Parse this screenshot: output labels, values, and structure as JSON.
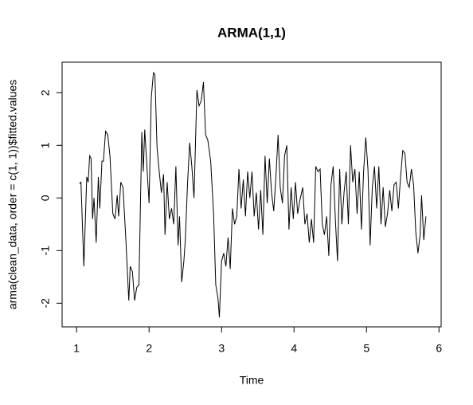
{
  "chart_data": {
    "type": "line",
    "title": "ARMA(1,1)",
    "x_label": "Time",
    "y_label": "arma(clean_data, order = c(1, 1))$fitted.values",
    "xlim": [
      0.8,
      6.03
    ],
    "ylim": [
      -2.45,
      2.58
    ],
    "xticks": [
      1,
      2,
      3,
      4,
      5,
      6
    ],
    "yticks": [
      -2,
      -1,
      0,
      1,
      2
    ],
    "color": "#000000",
    "x": [
      1.04,
      1.06,
      1.1,
      1.14,
      1.16,
      1.18,
      1.2,
      1.22,
      1.24,
      1.27,
      1.3,
      1.32,
      1.35,
      1.37,
      1.4,
      1.43,
      1.46,
      1.5,
      1.53,
      1.56,
      1.58,
      1.61,
      1.64,
      1.68,
      1.72,
      1.74,
      1.77,
      1.8,
      1.83,
      1.86,
      1.9,
      1.92,
      1.94,
      1.97,
      2.0,
      2.03,
      2.06,
      2.08,
      2.11,
      2.14,
      2.17,
      2.2,
      2.22,
      2.25,
      2.28,
      2.31,
      2.34,
      2.37,
      2.4,
      2.42,
      2.45,
      2.48,
      2.5,
      2.53,
      2.56,
      2.59,
      2.62,
      2.66,
      2.69,
      2.72,
      2.75,
      2.78,
      2.81,
      2.85,
      2.89,
      2.92,
      2.95,
      2.97,
      3.0,
      3.03,
      3.06,
      3.09,
      3.12,
      3.15,
      3.18,
      3.21,
      3.24,
      3.27,
      3.3,
      3.33,
      3.36,
      3.39,
      3.42,
      3.45,
      3.48,
      3.51,
      3.54,
      3.57,
      3.6,
      3.63,
      3.66,
      3.69,
      3.72,
      3.75,
      3.78,
      3.81,
      3.84,
      3.87,
      3.9,
      3.93,
      3.96,
      3.99,
      4.02,
      4.05,
      4.08,
      4.12,
      4.15,
      4.18,
      4.21,
      4.24,
      4.27,
      4.3,
      4.33,
      4.36,
      4.39,
      4.42,
      4.45,
      4.48,
      4.51,
      4.54,
      4.57,
      4.6,
      4.63,
      4.66,
      4.69,
      4.72,
      4.75,
      4.78,
      4.81,
      4.84,
      4.87,
      4.9,
      4.93,
      4.96,
      4.99,
      5.02,
      5.05,
      5.08,
      5.11,
      5.14,
      5.17,
      5.2,
      5.23,
      5.26,
      5.29,
      5.32,
      5.35,
      5.38,
      5.41,
      5.44,
      5.47,
      5.5,
      5.53,
      5.56,
      5.59,
      5.62,
      5.65,
      5.68,
      5.71,
      5.74,
      5.76,
      5.79,
      5.82
    ],
    "values": [
      0.27,
      0.3,
      -1.3,
      0.4,
      0.3,
      0.8,
      0.75,
      -0.4,
      0,
      -0.85,
      0.4,
      -0.2,
      0.7,
      0.7,
      1.27,
      1.2,
      0.8,
      -0.3,
      -0.4,
      0.05,
      -0.35,
      0.3,
      0.2,
      -0.8,
      -1.95,
      -1.3,
      -1.4,
      -1.95,
      -1.7,
      -1.65,
      1.25,
      0.5,
      1.3,
      0.6,
      -0.1,
      1.9,
      2.38,
      2.35,
      0.95,
      0.5,
      0.1,
      0.45,
      -0.7,
      0.3,
      -0.4,
      -0.2,
      -0.5,
      0.6,
      -0.9,
      -0.35,
      -1.6,
      -1.2,
      -0.8,
      0.25,
      1.05,
      0.6,
      0,
      2.05,
      1.75,
      1.85,
      2.2,
      1.2,
      1.1,
      0.7,
      -0.3,
      -1.65,
      -1.9,
      -2.27,
      -1.2,
      -1.05,
      -1.3,
      -0.75,
      -1.35,
      -0.2,
      -0.5,
      -0.35,
      0.55,
      -0.2,
      0.35,
      -0.35,
      0.5,
      0,
      0.5,
      -0.35,
      0.1,
      -0.6,
      0.15,
      -0.7,
      0.8,
      -0.1,
      0.75,
      0.1,
      -0.25,
      0.4,
      1.2,
      0.2,
      -0.1,
      0.8,
      1,
      -0.6,
      0.2,
      -0.4,
      0.3,
      -0.3,
      -0.05,
      0.2,
      -0.5,
      -0.3,
      -0.85,
      -0.4,
      -0.85,
      0.6,
      0.5,
      0.55,
      -0.5,
      -0.7,
      -0.35,
      -1.1,
      0.25,
      0.6,
      -0.4,
      -1.2,
      0.55,
      -0.5,
      0.1,
      0.5,
      -0.5,
      1,
      0.3,
      0.55,
      -0.3,
      0.5,
      -0.6,
      0.5,
      1.15,
      0.55,
      -0.9,
      0.2,
      0.6,
      -0.2,
      0.6,
      -0.5,
      0.2,
      -0.55,
      -0.3,
      0.15,
      -0.25,
      0.25,
      0.3,
      -0.2,
      0.4,
      0.9,
      0.85,
      0.3,
      0.2,
      0.55,
      0.25,
      -0.65,
      -1.05,
      -0.7,
      0.05,
      -0.8,
      -0.35
    ]
  }
}
